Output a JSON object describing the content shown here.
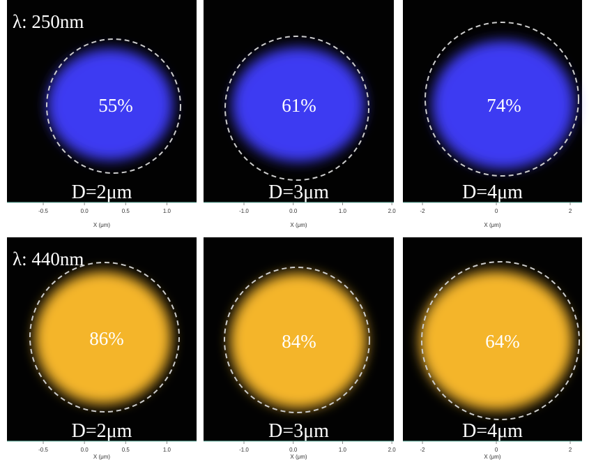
{
  "rows": [
    {
      "label": "λ: 250nm",
      "panels": [
        {
          "percent": "55%",
          "diameter": "D=2μm",
          "xaxis": {
            "label": "X (μm)",
            "xlim": [
              -0.94,
              1.36
            ],
            "xticks": [
              -0.5,
              {
                "value": 0,
                "label": "0.0"
              },
              0.5,
              {
                "value": 1,
                "label": "1.0"
              }
            ]
          }
        },
        {
          "percent": "61%",
          "diameter": "D=3μm",
          "xaxis": {
            "label": "X (μm)",
            "xlim": [
              -1.82,
              2.04
            ],
            "xticks": [
              {
                "value": -1,
                "label": "-1.0"
              },
              {
                "value": 0,
                "label": "0.0"
              },
              {
                "value": 1,
                "label": "1.0"
              },
              {
                "value": 2,
                "label": "2.0"
              }
            ]
          }
        },
        {
          "percent": "74%",
          "diameter": "D=4μm",
          "xaxis": {
            "label": "X (μm)",
            "xlim": [
              -2.53,
              2.32
            ],
            "xticks": [
              -2,
              0,
              2
            ]
          }
        }
      ]
    },
    {
      "label": "λ: 440nm",
      "panels": [
        {
          "percent": "86%",
          "diameter": "D=2μm",
          "xaxis": {
            "label": "X (μm)",
            "xlim": [
              -0.94,
              1.36
            ],
            "xticks": [
              -0.5,
              {
                "value": 0,
                "label": "0.0"
              },
              0.5,
              {
                "value": 1,
                "label": "1.0"
              }
            ]
          }
        },
        {
          "percent": "84%",
          "diameter": "D=3μm",
          "xaxis": {
            "label": "X (μm)",
            "xlim": [
              -1.82,
              2.04
            ],
            "xticks": [
              {
                "value": -1,
                "label": "-1.0"
              },
              {
                "value": 0,
                "label": "0.0"
              },
              {
                "value": 1,
                "label": "1.0"
              },
              {
                "value": 2,
                "label": "2.0"
              }
            ]
          }
        },
        {
          "percent": "64%",
          "diameter": "D=4μm",
          "xaxis": {
            "label": "X (μm)",
            "xlim": [
              -2.53,
              2.32
            ],
            "xticks": [
              -2,
              0,
              2
            ]
          }
        }
      ]
    }
  ]
}
